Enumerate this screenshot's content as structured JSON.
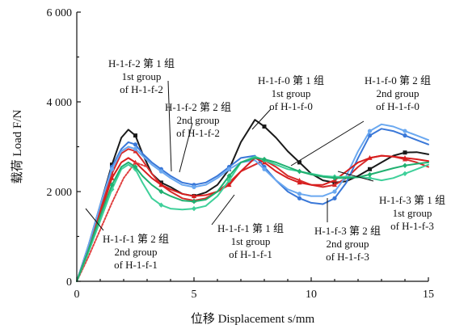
{
  "chart_data": {
    "type": "line",
    "xlabel": "位移 Displacement s/mm",
    "ylabel": "载荷 Load F/N",
    "xlim": [
      0,
      15
    ],
    "ylim": [
      0,
      6000
    ],
    "xticks": [
      "0",
      "5",
      "10",
      "15"
    ],
    "yticks": [
      "0",
      "2 000",
      "4 000",
      "6 000"
    ],
    "grid": false,
    "series": [
      {
        "name": "H-1-f-2 第 1 组 1st group of H-1-f-2",
        "color": "#1a1a1a",
        "marker": "square",
        "x": [
          0,
          0.5,
          1,
          1.5,
          1.9,
          2.2,
          2.5,
          2.8,
          3.2,
          3.6,
          4.0,
          4.5,
          5.0,
          5.5,
          6.0,
          6.5,
          7.0,
          7.6,
          8.0,
          8.5,
          9.0,
          9.5,
          10.0,
          10.5,
          11.0,
          11.5,
          12.0,
          12.5,
          13.0,
          13.5,
          14.0,
          14.5,
          15.0
        ],
        "y": [
          0,
          800,
          1700,
          2600,
          3200,
          3380,
          3250,
          2850,
          2400,
          2200,
          2100,
          1950,
          1900,
          1980,
          2150,
          2500,
          3100,
          3600,
          3450,
          3200,
          2900,
          2650,
          2400,
          2250,
          2200,
          2230,
          2350,
          2500,
          2650,
          2800,
          2870,
          2880,
          2830
        ]
      },
      {
        "name": "H-1-f-2 第 2 组 2nd group of H-1-f-2",
        "color": "#d62b2b",
        "marker": "triangle",
        "x": [
          0,
          0.5,
          1,
          1.5,
          1.9,
          2.2,
          2.5,
          2.8,
          3.2,
          3.6,
          4.0,
          4.5,
          5.0,
          5.5,
          6.0,
          6.5,
          7.0,
          7.6,
          8.0,
          8.5,
          9.0,
          9.5,
          10.0,
          10.5,
          11.0,
          11.5,
          12.0,
          12.5,
          13.0,
          13.5,
          14.0,
          14.5,
          15.0
        ],
        "y": [
          0,
          750,
          1600,
          2400,
          2850,
          2950,
          2900,
          2700,
          2400,
          2150,
          2000,
          1850,
          1800,
          1850,
          2000,
          2200,
          2450,
          2600,
          2700,
          2550,
          2350,
          2250,
          2150,
          2100,
          2150,
          2300,
          2550,
          2750,
          2800,
          2780,
          2720,
          2650,
          2550
        ]
      },
      {
        "name": "H-1-f-0 第 1 组 1st group of H-1-f-0",
        "color": "#3a78d8",
        "marker": "circle",
        "x": [
          0,
          0.5,
          1,
          1.5,
          1.9,
          2.2,
          2.5,
          2.8,
          3.2,
          3.6,
          4.0,
          4.5,
          5.0,
          5.5,
          6.0,
          6.5,
          7.0,
          7.6,
          8.0,
          8.5,
          9.0,
          9.5,
          10.0,
          10.5,
          11.0,
          11.5,
          12.0,
          12.5,
          13.0,
          13.5,
          14.0,
          14.5,
          15.0
        ],
        "y": [
          0,
          800,
          1700,
          2550,
          2950,
          3100,
          3050,
          2850,
          2650,
          2500,
          2350,
          2200,
          2150,
          2200,
          2350,
          2550,
          2750,
          2800,
          2550,
          2250,
          2000,
          1850,
          1750,
          1720,
          1850,
          2200,
          2750,
          3250,
          3400,
          3350,
          3250,
          3150,
          3050
        ]
      },
      {
        "name": "H-1-f-0 第 2 组 2nd group of H-1-f-0",
        "color": "#6aa8f0",
        "marker": "circle",
        "x": [
          0,
          0.5,
          1,
          1.5,
          1.9,
          2.2,
          2.5,
          2.8,
          3.2,
          3.6,
          4.0,
          4.5,
          5.0,
          5.5,
          6.0,
          6.5,
          7.0,
          7.6,
          8.0,
          8.5,
          9.0,
          9.5,
          10.0,
          10.5,
          11.0,
          11.5,
          12.0,
          12.5,
          13.0,
          13.5,
          14.0,
          14.5,
          15.0
        ],
        "y": [
          0,
          800,
          1700,
          2500,
          2900,
          3000,
          2950,
          2800,
          2600,
          2450,
          2300,
          2150,
          2100,
          2150,
          2300,
          2500,
          2650,
          2700,
          2500,
          2250,
          2050,
          1950,
          1900,
          1900,
          2000,
          2350,
          2900,
          3350,
          3500,
          3450,
          3350,
          3250,
          3150
        ]
      },
      {
        "name": "H-1-f-1 第 1 组 1st group of H-1-f-1",
        "color": "#d81e1e",
        "marker": "triangle",
        "x": [
          0,
          0.5,
          1,
          1.5,
          1.9,
          2.2,
          2.5,
          2.8,
          3.2,
          3.6,
          4.0,
          4.5,
          5.0,
          5.5,
          6.0,
          6.5,
          7.0,
          7.6,
          8.0,
          8.5,
          9.0,
          9.5,
          10.0,
          10.5,
          11.0,
          11.5,
          12.0,
          12.5,
          13.0,
          13.5,
          14.0,
          14.5,
          15.0
        ],
        "y": [
          0,
          700,
          1500,
          2300,
          2650,
          2750,
          2650,
          2500,
          2300,
          2150,
          2050,
          1950,
          1900,
          1920,
          2000,
          2150,
          2450,
          2750,
          2650,
          2450,
          2300,
          2200,
          2150,
          2150,
          2250,
          2450,
          2650,
          2750,
          2800,
          2780,
          2750,
          2720,
          2680
        ]
      },
      {
        "name": "H-1-f-1 第 2 组 2nd group of H-1-f-1",
        "color": "#e04040",
        "marker": "none",
        "dashed": true,
        "x": [
          0,
          0.5,
          1,
          1.5,
          2.0,
          2.5,
          3.0
        ],
        "y": [
          0,
          550,
          1150,
          1750,
          2300,
          2650,
          2550
        ]
      },
      {
        "name": "H-1-f-3 第 1 组 1st group of H-1-f-3",
        "color": "#3fd09a",
        "marker": "diamond",
        "x": [
          0,
          0.5,
          1,
          1.5,
          1.9,
          2.2,
          2.5,
          2.8,
          3.2,
          3.6,
          4.0,
          4.5,
          5.0,
          5.5,
          6.0,
          6.5,
          7.0,
          7.6,
          8.0,
          8.5,
          9.0,
          9.5,
          10.0,
          10.5,
          11.0,
          11.5,
          12.0,
          12.5,
          13.0,
          13.5,
          14.0,
          14.5,
          15.0
        ],
        "y": [
          0,
          650,
          1350,
          2050,
          2500,
          2600,
          2500,
          2200,
          1850,
          1700,
          1620,
          1600,
          1620,
          1680,
          1900,
          2250,
          2650,
          2780,
          2700,
          2600,
          2500,
          2450,
          2400,
          2350,
          2330,
          2330,
          2320,
          2300,
          2250,
          2300,
          2400,
          2500,
          2600
        ]
      },
      {
        "name": "H-1-f-3 第 2 组 2nd group of H-1-f-3",
        "color": "#20b070",
        "marker": "diamond",
        "x": [
          0,
          0.5,
          1,
          1.5,
          1.9,
          2.2,
          2.5,
          2.8,
          3.2,
          3.6,
          4.0,
          4.5,
          5.0,
          5.5,
          6.0,
          6.5,
          7.0,
          7.6,
          8.0,
          8.5,
          9.0,
          9.5,
          10.0,
          10.5,
          11.0,
          11.5,
          12.0,
          12.5,
          13.0,
          13.5,
          14.0,
          14.5,
          15.0
        ],
        "y": [
          0,
          700,
          1450,
          2150,
          2550,
          2650,
          2550,
          2350,
          2150,
          2000,
          1900,
          1800,
          1780,
          1820,
          2000,
          2350,
          2650,
          2750,
          2720,
          2650,
          2550,
          2450,
          2380,
          2330,
          2300,
          2300,
          2320,
          2380,
          2450,
          2520,
          2580,
          2620,
          2650
        ]
      }
    ],
    "annotations": [
      {
        "lines": [
          "H-1-f-2 第 1 组",
          "1st group",
          "of H-1-f-2"
        ]
      },
      {
        "lines": [
          "H-1-f-2 第 2 组",
          "2nd group",
          "of H-1-f-2"
        ]
      },
      {
        "lines": [
          "H-1-f-0 第 1 组",
          "1st group",
          "of H-1-f-0"
        ]
      },
      {
        "lines": [
          "H-1-f-0 第 2 组",
          "2nd group",
          "of H-1-f-0"
        ]
      },
      {
        "lines": [
          "H-1-f-3 第 1 组",
          "1st group",
          "of H-1-f-3"
        ]
      },
      {
        "lines": [
          "H-1-f-1 第 1 组",
          "1st group",
          "of H-1-f-1"
        ]
      },
      {
        "lines": [
          "H-1-f-3 第 2 组",
          "2nd group",
          "of H-1-f-3"
        ]
      },
      {
        "lines": [
          "H-1-f-1 第 2 组",
          "2nd group",
          "of H-1-f-1"
        ]
      }
    ]
  }
}
